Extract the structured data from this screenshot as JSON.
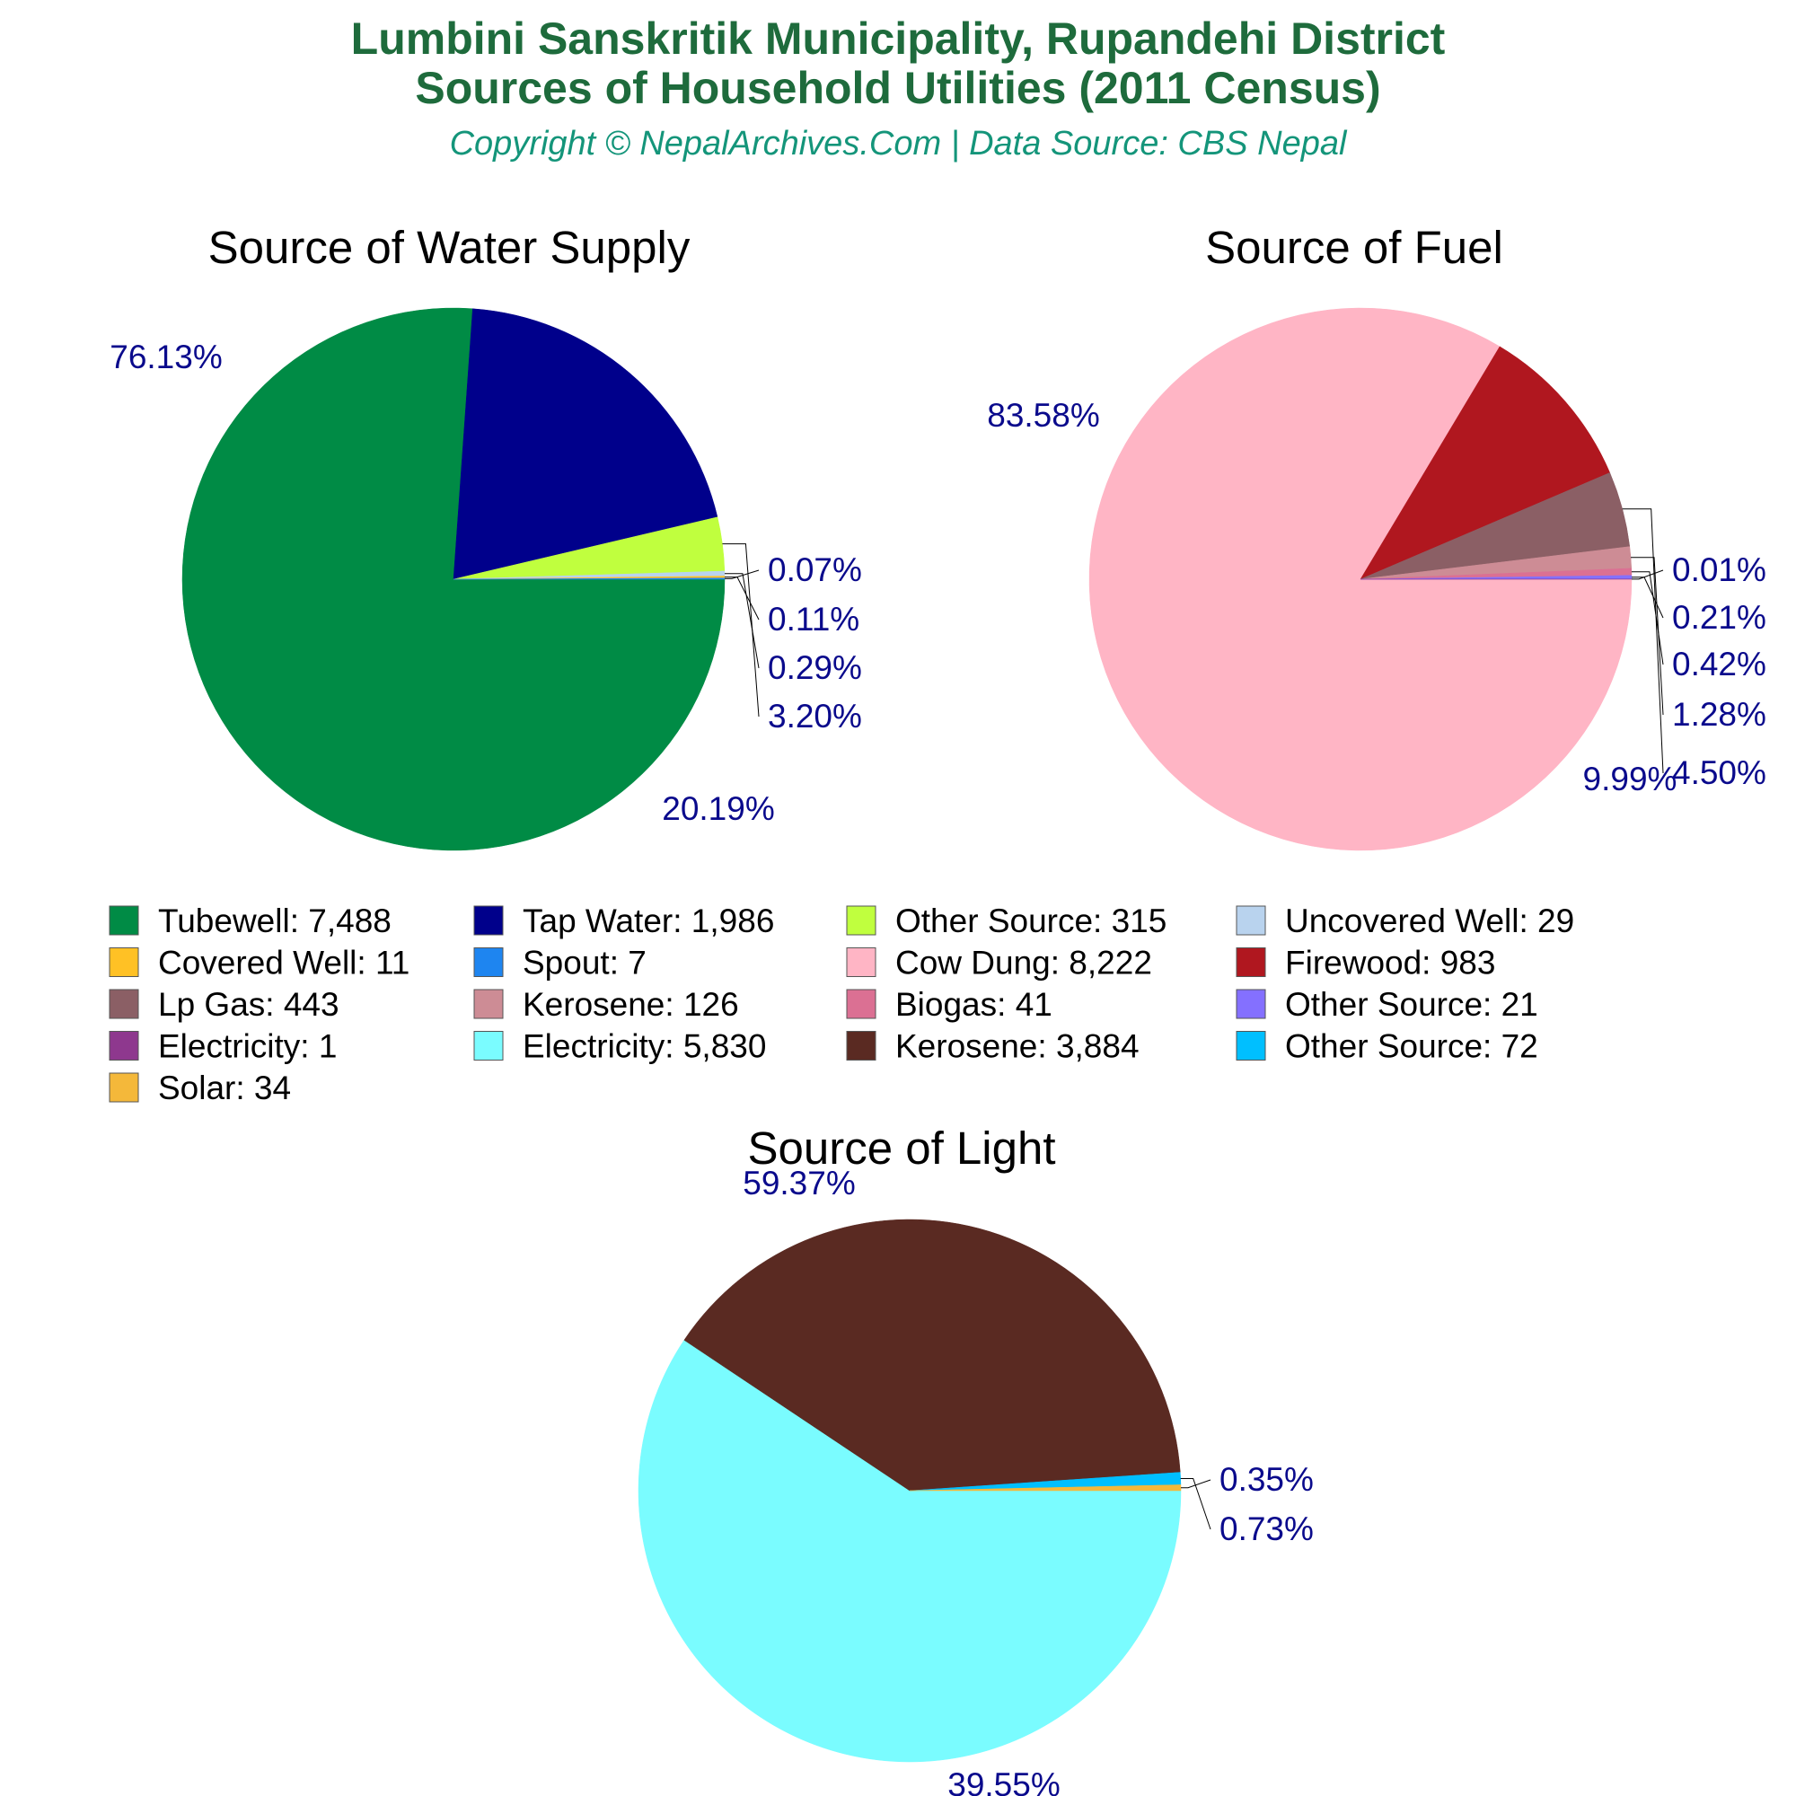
{
  "header": {
    "title_line1": "Lumbini Sanskritik Municipality, Rupandehi District",
    "title_line2": "Sources of Household Utilities (2011 Census)",
    "subtitle": "Copyright © NepalArchives.Com | Data Source: CBS Nepal"
  },
  "colors": {
    "title": "#1e6b3c",
    "subtitle": "#14957a",
    "percent_label": "#0a0a8c"
  },
  "chart_data": [
    {
      "type": "pie",
      "title": "Source of Water Supply",
      "slices": [
        {
          "label": "Tubewell",
          "value": 7488,
          "display": "7,488",
          "percent": "76.13%",
          "color": "#008b45"
        },
        {
          "label": "Tap Water",
          "value": 1986,
          "display": "1,986",
          "percent": "20.19%",
          "color": "#00008b"
        },
        {
          "label": "Other Source",
          "value": 315,
          "display": "315",
          "percent": "3.20%",
          "color": "#c0ff3e"
        },
        {
          "label": "Uncovered Well",
          "value": 29,
          "display": "29",
          "percent": "0.29%",
          "color": "#b9d3ee"
        },
        {
          "label": "Covered Well",
          "value": 11,
          "display": "11",
          "percent": "0.11%",
          "color": "#ffc125"
        },
        {
          "label": "Spout",
          "value": 7,
          "display": "7",
          "percent": "0.07%",
          "color": "#1e85f0"
        }
      ]
    },
    {
      "type": "pie",
      "title": "Source of Fuel",
      "slices": [
        {
          "label": "Cow Dung",
          "value": 8222,
          "display": "8,222",
          "percent": "83.58%",
          "color": "#ffb5c5"
        },
        {
          "label": "Firewood",
          "value": 983,
          "display": "983",
          "percent": "9.99%",
          "color": "#b0171f"
        },
        {
          "label": "Lp Gas",
          "value": 443,
          "display": "443",
          "percent": "4.50%",
          "color": "#8b5f65"
        },
        {
          "label": "Kerosene",
          "value": 126,
          "display": "126",
          "percent": "1.28%",
          "color": "#cd8c95"
        },
        {
          "label": "Biogas",
          "value": 41,
          "display": "41",
          "percent": "0.42%",
          "color": "#db7093"
        },
        {
          "label": "Other Source",
          "value": 21,
          "display": "21",
          "percent": "0.21%",
          "color": "#8470ff"
        },
        {
          "label": "Electricity",
          "value": 1,
          "display": "1",
          "percent": "0.01%",
          "color": "#8e388e"
        }
      ]
    },
    {
      "type": "pie",
      "title": "Source of Light",
      "slices": [
        {
          "label": "Electricity",
          "value": 5830,
          "display": "5,830",
          "percent": "59.37%",
          "color": "#7afcff"
        },
        {
          "label": "Kerosene",
          "value": 3884,
          "display": "3,884",
          "percent": "39.55%",
          "color": "#5a2a22"
        },
        {
          "label": "Other Source",
          "value": 72,
          "display": "72",
          "percent": "0.73%",
          "color": "#00bfff"
        },
        {
          "label": "Solar",
          "value": 34,
          "display": "34",
          "percent": "0.35%",
          "color": "#f4b83a"
        }
      ]
    }
  ],
  "legend": {
    "items": [
      {
        "label": "Tubewell: 7,488",
        "color": "#008b45"
      },
      {
        "label": "Tap Water: 1,986",
        "color": "#00008b"
      },
      {
        "label": "Other Source: 315",
        "color": "#c0ff3e"
      },
      {
        "label": "Uncovered Well: 29",
        "color": "#b9d3ee"
      },
      {
        "label": "Covered Well: 11",
        "color": "#ffc125"
      },
      {
        "label": "Spout: 7",
        "color": "#1e85f0"
      },
      {
        "label": "Cow Dung: 8,222",
        "color": "#ffb5c5"
      },
      {
        "label": "Firewood: 983",
        "color": "#b0171f"
      },
      {
        "label": "Lp Gas: 443",
        "color": "#8b5f65"
      },
      {
        "label": "Kerosene: 126",
        "color": "#cd8c95"
      },
      {
        "label": "Biogas: 41",
        "color": "#db7093"
      },
      {
        "label": "Other Source: 21",
        "color": "#8470ff"
      },
      {
        "label": "Electricity: 1",
        "color": "#8e388e"
      },
      {
        "label": "Electricity: 5,830",
        "color": "#7afcff"
      },
      {
        "label": "Kerosene: 3,884",
        "color": "#5a2a22"
      },
      {
        "label": "Other Source: 72",
        "color": "#00bfff"
      },
      {
        "label": "Solar: 34",
        "color": "#f4b83a"
      }
    ]
  }
}
